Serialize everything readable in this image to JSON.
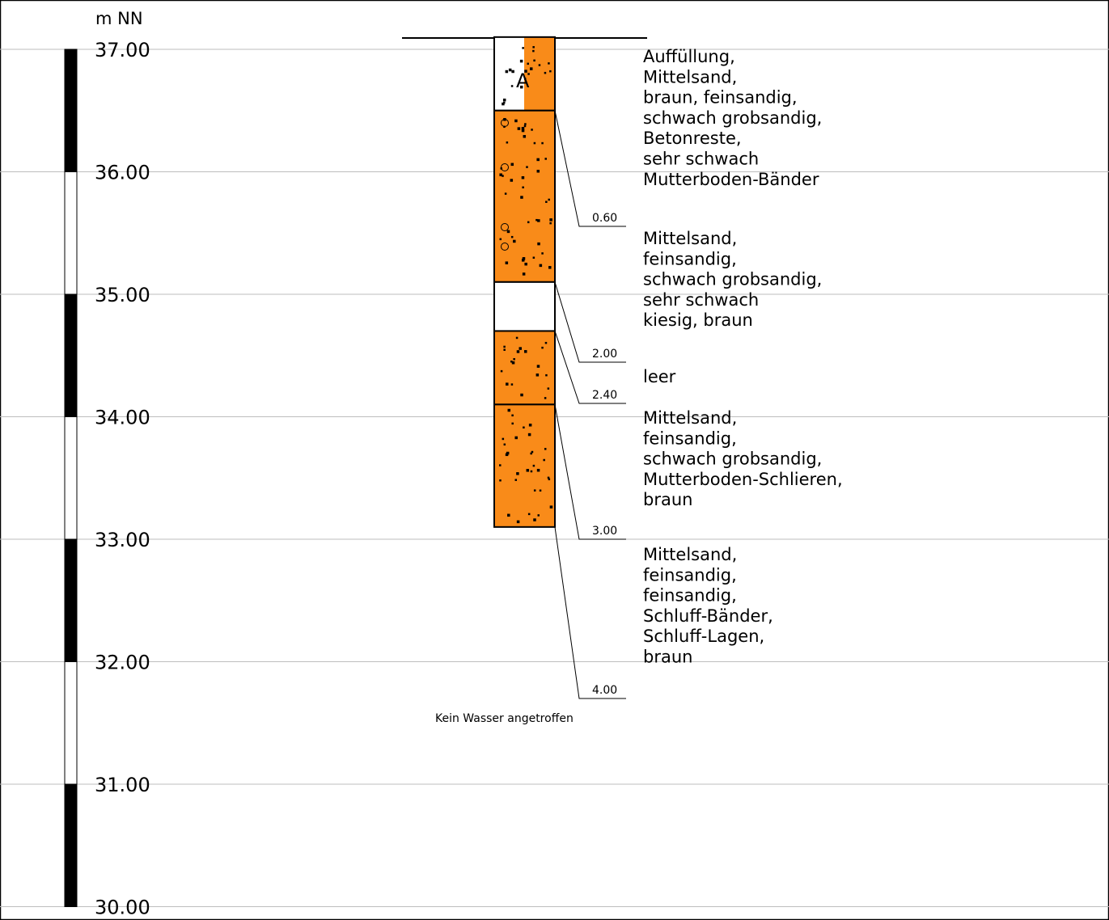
{
  "axis": {
    "unit_label": "m NN",
    "range": [
      30,
      37
    ],
    "ticks": [
      {
        "value": 37,
        "label": "37.00"
      },
      {
        "value": 36,
        "label": "36.00"
      },
      {
        "value": 35,
        "label": "35.00"
      },
      {
        "value": 34,
        "label": "34.00"
      },
      {
        "value": 33,
        "label": "33.00"
      },
      {
        "value": 32,
        "label": "32.00"
      },
      {
        "value": 31,
        "label": "31.00"
      },
      {
        "value": 30,
        "label": "30.00"
      }
    ]
  },
  "borehole": {
    "top_elevation": 37.1,
    "label": "A",
    "colors": {
      "sand": "#f98b19",
      "empty": "#ffffff",
      "fill_white": "#ffffff",
      "line": "#000000"
    },
    "layers": [
      {
        "from": 0.0,
        "to": 0.6,
        "pattern": "fill",
        "depth_label": "0.60",
        "description": [
          "Auffüllung,",
          "Mittelsand,",
          "braun, feinsandig,",
          "schwach grobsandig,",
          "Betonreste,",
          "sehr schwach",
          "Mutterboden-Bänder"
        ]
      },
      {
        "from": 0.6,
        "to": 2.0,
        "pattern": "sand-gravel",
        "depth_label": "2.00",
        "description": [
          "Mittelsand,",
          "feinsandig,",
          "schwach grobsandig,",
          "sehr schwach",
          "kiesig, braun"
        ]
      },
      {
        "from": 2.0,
        "to": 2.4,
        "pattern": "empty",
        "depth_label": "2.40",
        "description": [
          "leer"
        ]
      },
      {
        "from": 2.4,
        "to": 3.0,
        "pattern": "sand",
        "depth_label": "3.00",
        "description": [
          "Mittelsand,",
          "feinsandig,",
          "schwach grobsandig,",
          "Mutterboden-Schlieren,",
          "braun"
        ]
      },
      {
        "from": 3.0,
        "to": 4.0,
        "pattern": "sand",
        "depth_label": "4.00",
        "description": [
          "Mittelsand,",
          "feinsandig,",
          "feinsandig,",
          "Schluff-Bänder,",
          "Schluff-Lagen,",
          "braun"
        ]
      }
    ],
    "water_note": "Kein Wasser angetroffen"
  }
}
